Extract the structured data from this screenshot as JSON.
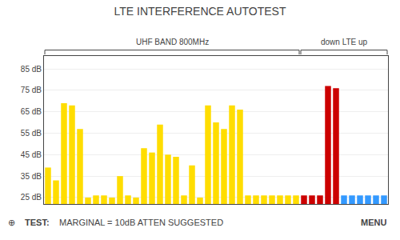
{
  "chart_data": {
    "type": "bar",
    "title": "LTE INTERFERENCE AUTOTEST",
    "categories": [
      null,
      null,
      null,
      null,
      null,
      null,
      null,
      null,
      null,
      null,
      null,
      null,
      null,
      null,
      null,
      null,
      null,
      null,
      null,
      null,
      null,
      null,
      null,
      null,
      null,
      null,
      null,
      null,
      null,
      null,
      null,
      null,
      null,
      null,
      null,
      null,
      null,
      null,
      null,
      null,
      null,
      null,
      null
    ],
    "values": [
      39,
      33,
      69,
      68,
      57,
      25,
      26,
      26,
      25,
      35,
      26,
      25,
      48,
      46,
      59,
      45,
      44,
      26,
      40,
      25,
      68,
      60,
      57,
      68,
      66,
      26,
      26,
      26,
      26,
      26,
      26,
      26,
      26,
      26,
      26,
      77,
      76,
      26,
      26,
      26,
      26,
      26,
      26
    ],
    "colors": [
      "#ffdd00",
      "#ffdd00",
      "#ffdd00",
      "#ffdd00",
      "#ffdd00",
      "#ffdd00",
      "#ffdd00",
      "#ffdd00",
      "#ffdd00",
      "#ffdd00",
      "#ffdd00",
      "#ffdd00",
      "#ffdd00",
      "#ffdd00",
      "#ffdd00",
      "#ffdd00",
      "#ffdd00",
      "#ffdd00",
      "#ffdd00",
      "#ffdd00",
      "#ffdd00",
      "#ffdd00",
      "#ffdd00",
      "#ffdd00",
      "#ffdd00",
      "#ffdd00",
      "#ffdd00",
      "#ffdd00",
      "#ffdd00",
      "#ffdd00",
      "#ffdd00",
      "#ffdd00",
      "#cc0000",
      "#cc0000",
      "#cc0000",
      "#cc0000",
      "#cc0000",
      "#3399ff",
      "#3399ff",
      "#3399ff",
      "#3399ff",
      "#3399ff",
      "#3399ff"
    ],
    "ylim": [
      22,
      91
    ],
    "yticks": [
      {
        "value": 25,
        "label": "25 dB"
      },
      {
        "value": 35,
        "label": "35 dB"
      },
      {
        "value": 45,
        "label": "45 dB"
      },
      {
        "value": 55,
        "label": "55 dB"
      },
      {
        "value": 65,
        "label": "65 dB"
      },
      {
        "value": 75,
        "label": "75 dB"
      },
      {
        "value": 85,
        "label": "85 dB"
      }
    ],
    "grid": true,
    "tick_labels": "y",
    "annotations": [
      "UHF BAND 800MHz",
      "down LTE up",
      "⊕",
      "TEST:",
      "MARGINAL = 10dB ATTEN SUGGESTED",
      "MENU"
    ]
  }
}
